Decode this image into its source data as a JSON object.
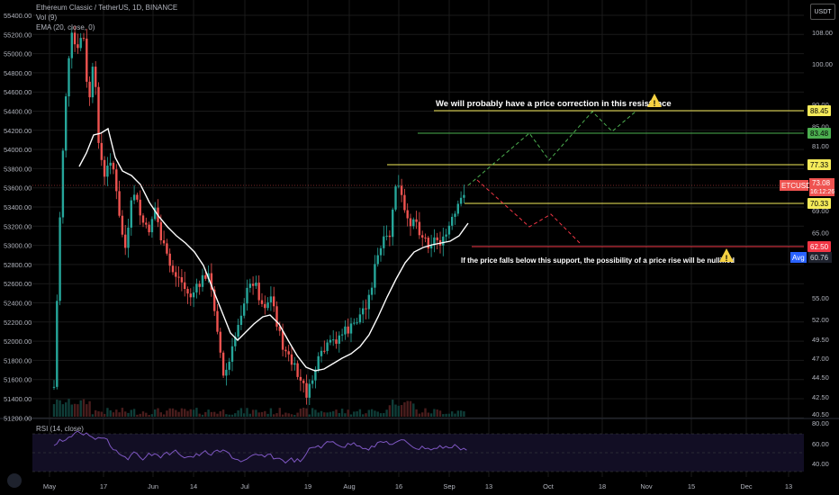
{
  "header": {
    "symbol_line": "Ethereum Classic / TetherUS, 1D, BINANCE",
    "vol_line": "Vol (9)",
    "ema_line": "EMA (20, close, 0)",
    "rsi_line": "RSI (14, close)"
  },
  "currency_badge": "USDT",
  "left_axis_ticks": [
    "55400.00",
    "55200.00",
    "55000.00",
    "54800.00",
    "54600.00",
    "54400.00",
    "54200.00",
    "54000.00",
    "53800.00",
    "53600.00",
    "53400.00",
    "53200.00",
    "53000.00",
    "52800.00",
    "52600.00",
    "52400.00",
    "52200.00",
    "52000.00",
    "51800.00",
    "51600.00",
    "51400.00",
    "51200.00"
  ],
  "right_axis_ticks": [
    "108.00",
    "100.00",
    "90.00",
    "85.00",
    "81.00",
    "77.00",
    "73.00",
    "69.00",
    "65.00",
    "61.00",
    "55.00",
    "52.00",
    "49.50",
    "47.00",
    "44.50",
    "42.50",
    "40.50"
  ],
  "rsi_axis_ticks": [
    "80.00",
    "60.00",
    "40.00"
  ],
  "x_axis_ticks": [
    "May",
    "17",
    "Jun",
    "14",
    "Jul",
    "19",
    "Aug",
    "16",
    "Sep",
    "13",
    "Oct",
    "18",
    "Nov",
    "15",
    "Dec",
    "13"
  ],
  "annotations": {
    "resistance_note": "We will probably have a price correction in this resistance",
    "support_note": "If the price falls below this support, the possibility of a price rise will be nullified"
  },
  "price_tags": [
    {
      "text": "88.45",
      "bg": "#f5eb5a",
      "fg": "#000000",
      "y": 88.45
    },
    {
      "text": "83.48",
      "bg": "#4caf50",
      "fg": "#000000",
      "y": 83.48
    },
    {
      "text": "77.33",
      "bg": "#f5eb5a",
      "fg": "#000000",
      "y": 77.33
    },
    {
      "text": "70.33",
      "bg": "#f5eb5a",
      "fg": "#000000",
      "y": 70.33
    },
    {
      "text": "62.50",
      "bg": "#f23645",
      "fg": "#ffffff",
      "y": 62.5
    }
  ],
  "current_price": {
    "symbol": "ETCUSDT",
    "price": "73.08",
    "countdown": "16:12:26"
  },
  "avg_tag": {
    "label": "Avg",
    "value": "60.76"
  },
  "colors": {
    "up": "#26a69a",
    "down": "#ef5350",
    "ema": "#ffffff",
    "resistance": "#f5eb5a",
    "target": "#4caf50",
    "support": "#f23645",
    "rsi": "#7e57c2"
  },
  "chart_data": {
    "type": "candlestick",
    "title": "Ethereum Classic / TetherUS, 1D, BINANCE",
    "key_levels": [
      88.45,
      83.48,
      77.33,
      70.33,
      62.5
    ],
    "last_price": 73.08,
    "series": [
      {
        "name": "EMA (20, close, 0)",
        "values": []
      },
      {
        "name": "RSI (14, close)",
        "values": []
      }
    ]
  }
}
